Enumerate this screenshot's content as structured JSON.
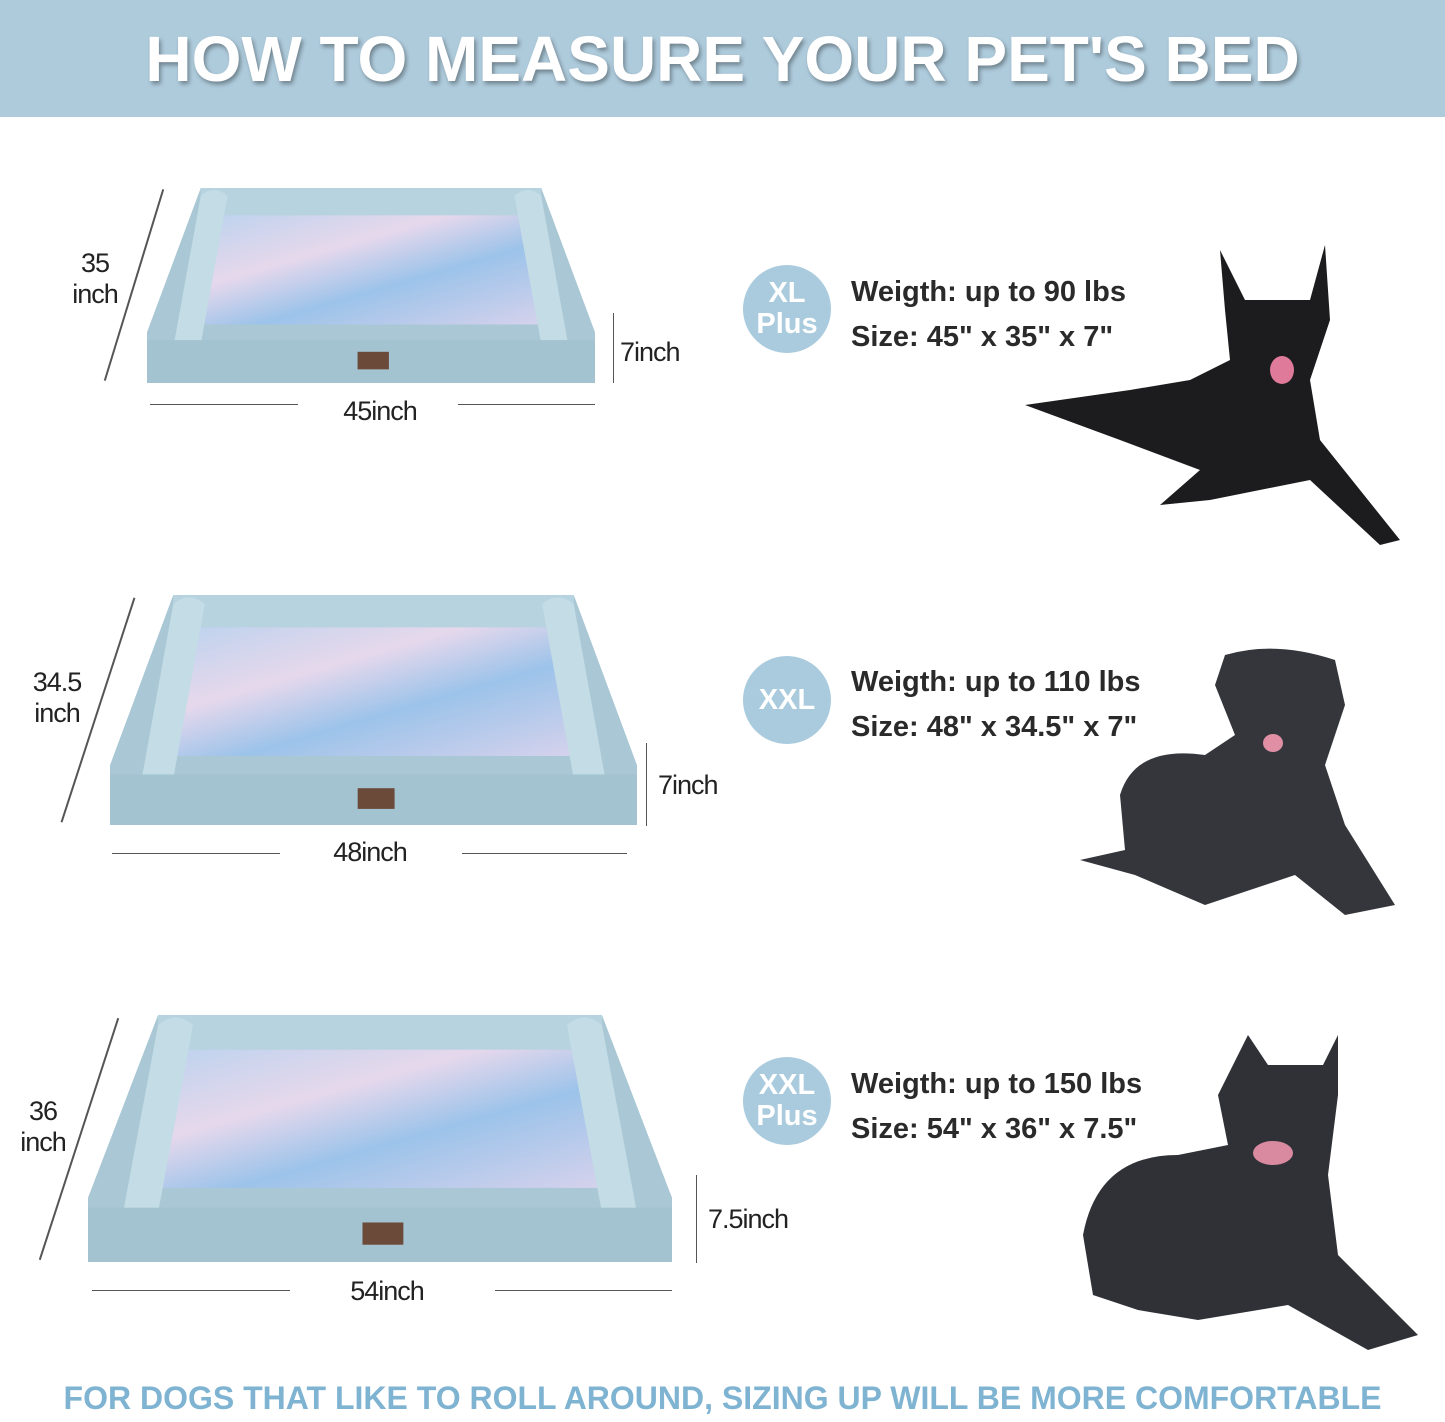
{
  "header": {
    "title": "HOW TO MEASURE YOUR PET'S BED"
  },
  "beds": [
    {
      "size": "XL Plus",
      "badge_lines": [
        "XL",
        "Plus"
      ],
      "depth_lines": [
        "35",
        "inch"
      ],
      "width_label": "45inch",
      "height_label": "7inch",
      "weight": "Weigth: up to 90 lbs",
      "dimensions": "Size: 45\" x 35\" x 7\""
    },
    {
      "size": "XXL",
      "badge_lines": [
        "XXL"
      ],
      "depth_lines": [
        "34.5",
        "inch"
      ],
      "width_label": "48inch",
      "height_label": "7inch",
      "weight": "Weigth: up to 110 lbs",
      "dimensions": "Size: 48\" x 34.5\" x 7\""
    },
    {
      "size": "XXL Plus",
      "badge_lines": [
        "XXL",
        "Plus"
      ],
      "depth_lines": [
        "36",
        "inch"
      ],
      "width_label": "54inch",
      "height_label": "7.5inch",
      "weight": "Weigth: up to 150 lbs",
      "dimensions": "Size: 54\" x 36\" x 7.5\""
    }
  ],
  "footer": {
    "text": "FOR DOGS THAT LIKE TO ROLL AROUND, SIZING UP WILL BE MORE COMFORTABLE"
  },
  "colors": {
    "header_bg": "#aecbdc",
    "badge": "#a9cbdd",
    "footer_text": "#7fb3d2",
    "bed_frame": "#a9c7d4"
  }
}
